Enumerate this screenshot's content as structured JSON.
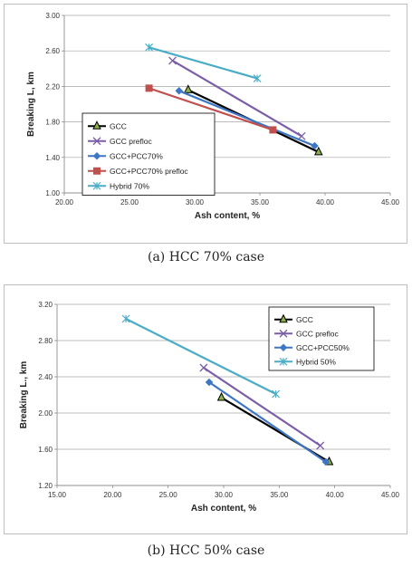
{
  "chart_data": [
    {
      "type": "line",
      "caption": "(a) HCC 70% case",
      "xlabel": "Ash content, %",
      "ylabel": "Breaking L, km",
      "xlim": [
        20,
        45
      ],
      "ylim": [
        1.0,
        3.0
      ],
      "xticks": [
        "20.00",
        "25.00",
        "30.00",
        "35.00",
        "40.00",
        "45.00"
      ],
      "yticks": [
        "1.00",
        "1.40",
        "1.80",
        "2.20",
        "2.60",
        "3.00"
      ],
      "grid": "horizontal",
      "legend_position": "lower-left",
      "series": [
        {
          "name": "GCC",
          "color": "#000000",
          "marker": "triangle",
          "x": [
            29.5,
            39.5
          ],
          "y": [
            2.16,
            1.46
          ]
        },
        {
          "name": "GCC prefloc",
          "color": "#7b5ea7",
          "marker": "x",
          "x": [
            28.3,
            38.2
          ],
          "y": [
            2.49,
            1.64
          ]
        },
        {
          "name": "GCC+PCC70%",
          "color": "#3f76c4",
          "marker": "diamond",
          "x": [
            28.8,
            39.2
          ],
          "y": [
            2.15,
            1.53
          ]
        },
        {
          "name": "GCC+PCC70% prefloc",
          "color": "#c0504d",
          "marker": "square",
          "x": [
            26.5,
            36.0
          ],
          "y": [
            2.18,
            1.71
          ]
        },
        {
          "name": "Hybrid 70%",
          "color": "#4bacc6",
          "marker": "star",
          "x": [
            26.5,
            34.8
          ],
          "y": [
            2.64,
            2.29
          ]
        }
      ]
    },
    {
      "type": "line",
      "caption": "(b) HCC 50% case",
      "xlabel": "Ash content, %",
      "ylabel": "Breaking L., km",
      "xlim": [
        15,
        45
      ],
      "ylim": [
        1.2,
        3.2
      ],
      "xticks": [
        "15.00",
        "20.00",
        "25.00",
        "30.00",
        "35.00",
        "40.00",
        "45.00"
      ],
      "yticks": [
        "1.20",
        "1.60",
        "2.00",
        "2.40",
        "2.80",
        "3.20"
      ],
      "grid": "horizontal",
      "legend_position": "top-right",
      "series": [
        {
          "name": "GCC",
          "color": "#000000",
          "marker": "triangle",
          "x": [
            29.8,
            39.5
          ],
          "y": [
            2.17,
            1.46
          ]
        },
        {
          "name": "GCC prefloc",
          "color": "#7b5ea7",
          "marker": "x",
          "x": [
            28.2,
            38.7
          ],
          "y": [
            2.5,
            1.64
          ]
        },
        {
          "name": "GCC+PCC50%",
          "color": "#3f76c4",
          "marker": "diamond",
          "x": [
            28.7,
            39.2
          ],
          "y": [
            2.34,
            1.46
          ]
        },
        {
          "name": "Hybrid 50%",
          "color": "#4bacc6",
          "marker": "star",
          "x": [
            21.2,
            34.7
          ],
          "y": [
            3.04,
            2.21
          ]
        }
      ]
    }
  ]
}
